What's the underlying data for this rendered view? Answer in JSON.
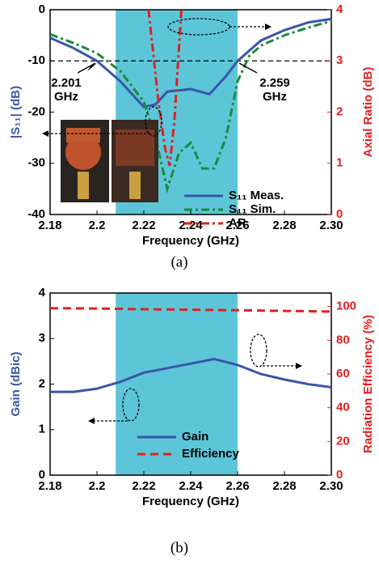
{
  "chart_data": [
    {
      "type": "line",
      "xlabel": "Frequency (GHz)",
      "ylabel": "|S₁₁| (dB)",
      "y2label": "Axial Ratio (dB)",
      "xlim": [
        2.18,
        2.3
      ],
      "xticks": [
        2.18,
        2.2,
        2.22,
        2.24,
        2.26,
        2.28,
        {
          "value": 2.3,
          "label": "2.30"
        }
      ],
      "ylim": [
        -40,
        0
      ],
      "yticks": [
        -40,
        -30,
        -20,
        -10,
        0
      ],
      "y2lim": [
        0,
        4
      ],
      "y2ticks": [
        0,
        1,
        2,
        3,
        4
      ],
      "shaded_region": [
        2.208,
        2.26
      ],
      "reference_line": -10,
      "annotations": [
        "2.201",
        "GHz",
        "2.259",
        "GHz"
      ],
      "caption": "(a)",
      "series": [
        {
          "name": "S₁₁ Meas.",
          "color": "#3a55a8",
          "dash": "solid",
          "x": [
            2.18,
            2.19,
            2.2,
            2.21,
            2.22,
            2.225,
            2.23,
            2.24,
            2.248,
            2.255,
            2.26,
            2.27,
            2.28,
            2.29,
            2.3
          ],
          "values": [
            -5.5,
            -7.5,
            -10,
            -14,
            -19,
            -18.5,
            -16,
            -15.5,
            -16.5,
            -13,
            -10,
            -6,
            -4,
            -2.5,
            -1.8
          ]
        },
        {
          "name": "S₁₁ Sim.",
          "color": "#1a8a3a",
          "dash": "dashdot",
          "x": [
            2.18,
            2.19,
            2.2,
            2.21,
            2.22,
            2.225,
            2.23,
            2.235,
            2.24,
            2.245,
            2.25,
            2.255,
            2.26,
            2.265,
            2.27,
            2.28,
            2.29,
            2.3
          ],
          "values": [
            -4.8,
            -6.5,
            -8.5,
            -12,
            -18,
            -25,
            -35,
            -28,
            -26,
            -31,
            -31,
            -25,
            -14,
            -9,
            -7,
            -5,
            -3.5,
            -2.2
          ]
        },
        {
          "name": "AR",
          "color": "#e02020",
          "dash": "dashdot",
          "axis": "y2",
          "x": [
            2.222,
            2.226,
            2.229,
            2.231,
            2.233,
            2.236
          ],
          "values": [
            4,
            2.3,
            1.3,
            0.95,
            1.8,
            4
          ]
        }
      ]
    },
    {
      "type": "line",
      "xlabel": "Frequency (GHz)",
      "ylabel": "Gain (dBic)",
      "y2label": "Radiation Efficiency (%)",
      "xlim": [
        2.18,
        2.3
      ],
      "xticks": [
        2.18,
        2.2,
        2.22,
        2.24,
        2.26,
        2.28,
        {
          "value": 2.3,
          "label": "2.30"
        }
      ],
      "ylim": [
        0,
        4
      ],
      "yticks": [
        0,
        1,
        2,
        3,
        4
      ],
      "y2lim": [
        0,
        108
      ],
      "y2ticks": [
        0,
        20,
        40,
        60,
        80,
        100
      ],
      "shaded_region": [
        2.208,
        2.26
      ],
      "caption": "(b)",
      "series": [
        {
          "name": "Gain",
          "color": "#3a55a8",
          "dash": "solid",
          "x": [
            2.18,
            2.19,
            2.2,
            2.21,
            2.22,
            2.23,
            2.24,
            2.25,
            2.26,
            2.27,
            2.28,
            2.29,
            2.3
          ],
          "values": [
            1.83,
            1.83,
            1.9,
            2.05,
            2.25,
            2.35,
            2.45,
            2.55,
            2.42,
            2.22,
            2.1,
            2.0,
            1.93
          ]
        },
        {
          "name": "Efficiency",
          "color": "#e02020",
          "dash": "dash",
          "axis": "y2",
          "x": [
            2.18,
            2.2,
            2.22,
            2.24,
            2.26,
            2.28,
            2.3
          ],
          "values": [
            99,
            98.8,
            98.4,
            98.1,
            97.8,
            97.4,
            97
          ]
        }
      ]
    }
  ]
}
